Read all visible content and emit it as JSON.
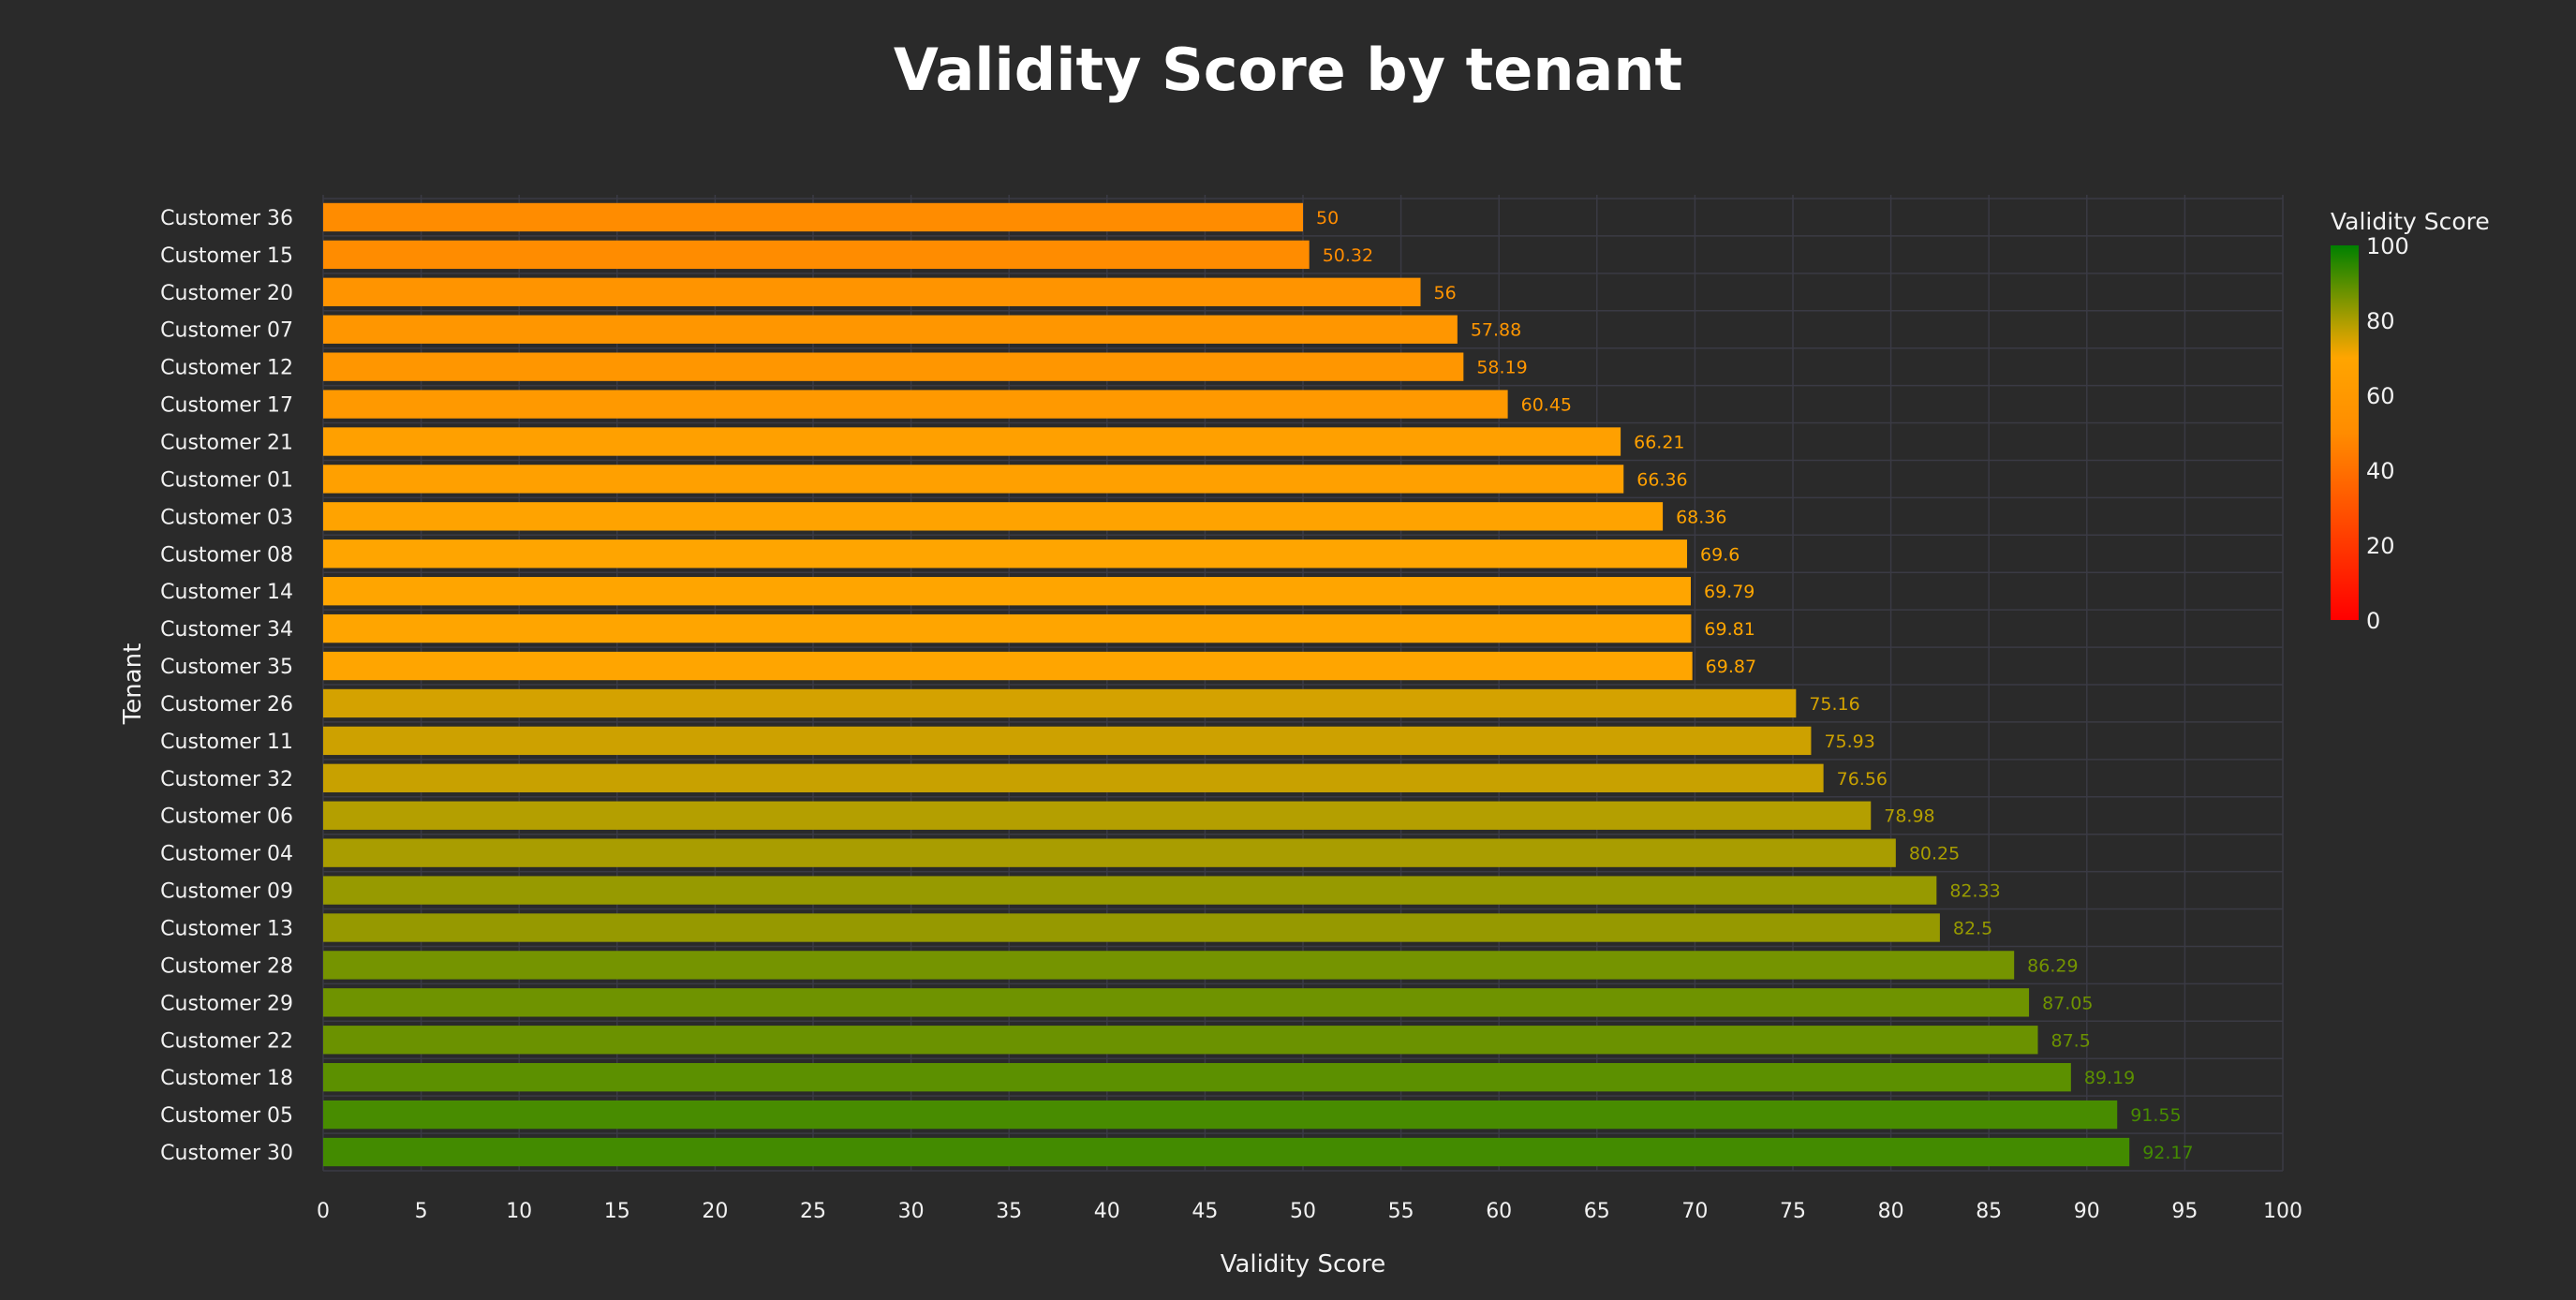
{
  "chart_data": {
    "type": "bar",
    "orientation": "horizontal",
    "title": "Validity Score by tenant",
    "xlabel": "Validity Score",
    "ylabel": "Tenant",
    "xlim": [
      0,
      100
    ],
    "x_ticks": [
      0,
      5,
      10,
      15,
      20,
      25,
      30,
      35,
      40,
      45,
      50,
      55,
      60,
      65,
      70,
      75,
      80,
      85,
      90,
      95,
      100
    ],
    "grid": true,
    "categories": [
      "Customer 36",
      "Customer 15",
      "Customer 20",
      "Customer 07",
      "Customer 12",
      "Customer 17",
      "Customer 21",
      "Customer 01",
      "Customer 03",
      "Customer 08",
      "Customer 14",
      "Customer 34",
      "Customer 35",
      "Customer 26",
      "Customer 11",
      "Customer 32",
      "Customer 06",
      "Customer 04",
      "Customer 09",
      "Customer 13",
      "Customer 28",
      "Customer 29",
      "Customer 22",
      "Customer 18",
      "Customer 05",
      "Customer 30"
    ],
    "values": [
      50,
      50.32,
      56,
      57.88,
      58.19,
      60.45,
      66.21,
      66.36,
      68.36,
      69.6,
      69.79,
      69.81,
      69.87,
      75.16,
      75.93,
      76.56,
      78.98,
      80.25,
      82.33,
      82.5,
      86.29,
      87.05,
      87.5,
      89.19,
      91.55,
      92.17
    ],
    "value_labels": [
      "50",
      "50.32",
      "56",
      "57.88",
      "58.19",
      "60.45",
      "66.21",
      "66.36",
      "68.36",
      "69.6",
      "69.79",
      "69.81",
      "69.87",
      "75.16",
      "75.93",
      "76.56",
      "78.98",
      "80.25",
      "82.33",
      "82.5",
      "86.29",
      "87.05",
      "87.5",
      "89.19",
      "91.55",
      "92.17"
    ],
    "colorscale": {
      "title": "Validity Score",
      "range": [
        0,
        100
      ],
      "ticks": [
        0,
        20,
        40,
        60,
        80,
        100
      ],
      "stops": [
        [
          0,
          "#ff0000"
        ],
        [
          0.5,
          "#ff8c00"
        ],
        [
          0.7,
          "#ffa500"
        ],
        [
          0.78,
          "#bca000"
        ],
        [
          1,
          "#008000"
        ]
      ]
    }
  },
  "colors": {
    "background": "#2a2a2a",
    "grid": "#3a3a44",
    "text": "#f2f2f2"
  }
}
